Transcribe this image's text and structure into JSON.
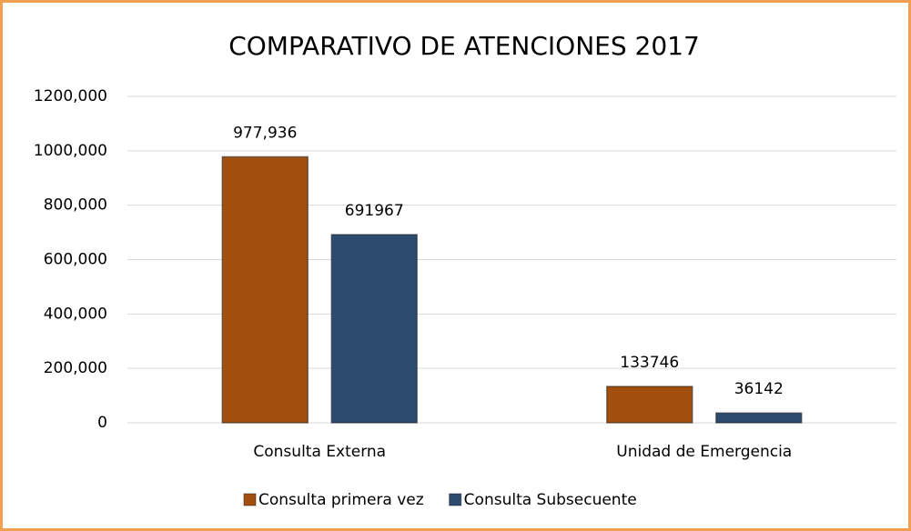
{
  "chart_data": {
    "type": "bar",
    "title": "COMPARATIVO DE ATENCIONES 2017",
    "categories": [
      "Consulta Externa",
      "Unidad de Emergencia"
    ],
    "series": [
      {
        "name": "Consulta primera vez",
        "color": "#a3500f",
        "values": [
          977936,
          133746
        ],
        "value_labels": [
          "977,936",
          "133746"
        ]
      },
      {
        "name": "Consulta Subsecuente",
        "color": "#2d4a6f",
        "values": [
          691967,
          36142
        ]
      }
    ],
    "ylim": [
      0,
      1200000
    ],
    "yticks": [
      0,
      {
        "value": 200000,
        "label": "200,000"
      },
      {
        "value": 400000,
        "label": "400,000"
      },
      {
        "value": 600000,
        "label": "600,000"
      },
      {
        "value": 800000,
        "label": "800,000"
      },
      {
        "value": 1000000,
        "label": "1000,000"
      },
      {
        "value": 1200000,
        "label": "1200,000"
      }
    ],
    "grid": true,
    "legend": "bottom"
  }
}
